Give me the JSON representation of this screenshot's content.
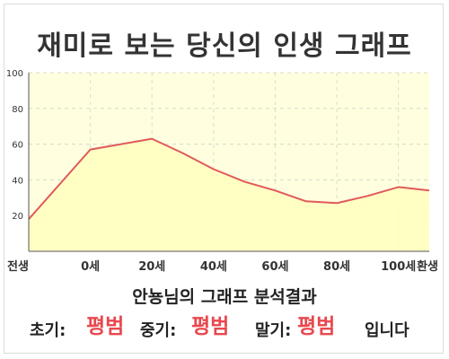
{
  "title": "재미로 보는 당신의 인생 그래프",
  "chart_data": {
    "type": "area",
    "x_labels": [
      "전생",
      "0세",
      "20세",
      "40세",
      "60세",
      "80세",
      "100세",
      "환생"
    ],
    "x": [
      -20,
      0,
      20,
      30,
      40,
      50,
      60,
      70,
      80,
      90,
      100,
      110
    ],
    "values": [
      18,
      57,
      63,
      55,
      46,
      39,
      34,
      28,
      27,
      31,
      36,
      34
    ],
    "y_ticks": [
      20,
      40,
      60,
      80,
      100
    ],
    "ylim": [
      0,
      100
    ],
    "grid": true,
    "line_color": "#e05a5a",
    "fill_color": "#ffffc0",
    "plot_bg": "#ffffe0"
  },
  "summary": "안뇽님의 그래프 분석결과",
  "result": {
    "early_label": "초기:",
    "early_value": "평범",
    "middle_label": "중기:",
    "middle_value": "평범",
    "late_label": "말기:",
    "late_value": "평범",
    "ending": "입니다"
  }
}
